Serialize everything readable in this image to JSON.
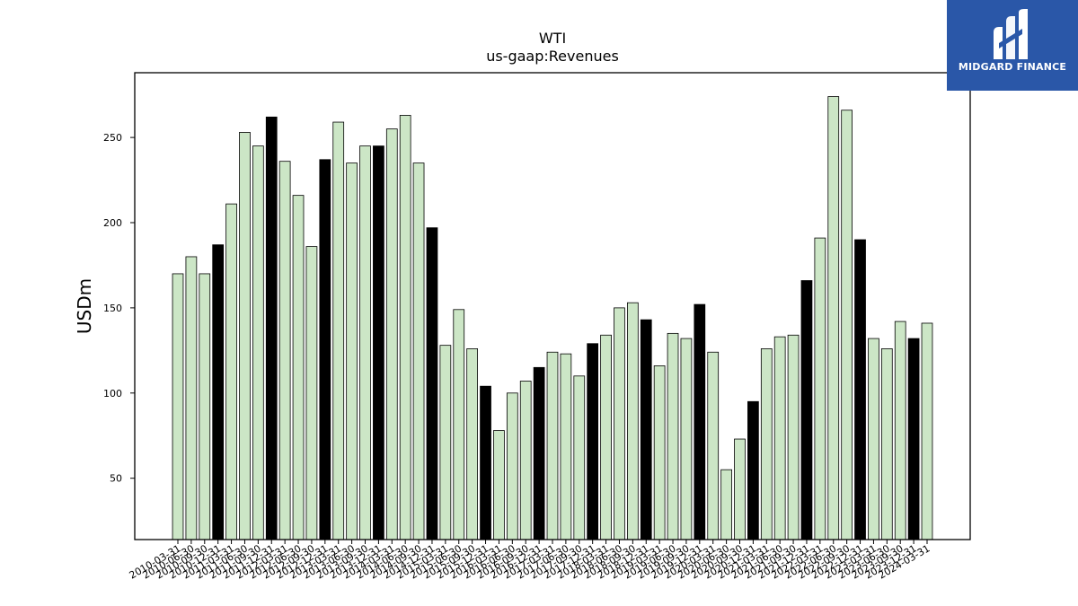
{
  "brand": {
    "name": "MIDGARD FINANCE",
    "bg_color": "#2a57a8"
  },
  "chart_data": {
    "type": "bar",
    "title": "WTI",
    "subtitle": "us-gaap:Revenues",
    "xlabel": "",
    "ylabel": "USDm",
    "ylim": [
      14,
      288
    ],
    "yticks": [
      50,
      100,
      150,
      200,
      250
    ],
    "grid": false,
    "colors": {
      "quarter": "#cce6c6",
      "year_end": "#000000",
      "edge": "#000000"
    },
    "categories": [
      "2010-03-31",
      "2010-06-30",
      "2010-09-30",
      "2010-12-31",
      "2011-03-31",
      "2011-06-30",
      "2011-09-30",
      "2011-12-31",
      "2012-03-31",
      "2012-06-30",
      "2012-09-30",
      "2012-12-31",
      "2013-03-31",
      "2013-06-30",
      "2013-09-30",
      "2013-12-31",
      "2014-03-31",
      "2014-06-30",
      "2014-09-30",
      "2014-12-31",
      "2015-03-31",
      "2015-06-30",
      "2015-09-30",
      "2015-12-31",
      "2016-03-31",
      "2016-06-30",
      "2016-09-30",
      "2016-12-31",
      "2017-03-31",
      "2017-06-30",
      "2017-09-30",
      "2017-12-31",
      "2018-03-31",
      "2018-06-30",
      "2018-09-30",
      "2018-12-31",
      "2019-03-31",
      "2019-06-30",
      "2019-09-30",
      "2019-12-31",
      "2020-03-31",
      "2020-06-30",
      "2020-09-30",
      "2020-12-31",
      "2021-03-31",
      "2021-06-30",
      "2021-09-30",
      "2021-12-31",
      "2022-03-31",
      "2022-06-30",
      "2022-09-30",
      "2022-12-31",
      "2023-03-31",
      "2023-06-30",
      "2023-09-30",
      "2023-12-31",
      "2024-03-31"
    ],
    "values": [
      170,
      180,
      170,
      187,
      211,
      253,
      245,
      262,
      236,
      216,
      186,
      237,
      259,
      235,
      245,
      245,
      255,
      263,
      235,
      197,
      128,
      149,
      126,
      104,
      78,
      100,
      107,
      115,
      124,
      123,
      110,
      129,
      134,
      150,
      153,
      143,
      116,
      135,
      132,
      152,
      124,
      55,
      73,
      95,
      126,
      133,
      134,
      166,
      191,
      274,
      266,
      190,
      132,
      126,
      142,
      132,
      141
    ],
    "highlight_year_end": true
  }
}
